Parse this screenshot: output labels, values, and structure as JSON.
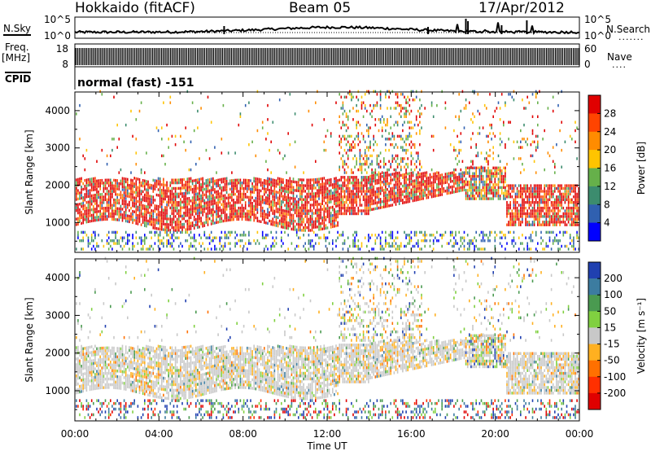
{
  "header": {
    "station": "Hokkaido (fitACF)",
    "beam": "Beam 05",
    "date": "17/Apr/2012"
  },
  "side_labels": {
    "nsky": "N.Sky",
    "freq_top": "Freq.",
    "freq_unit": "[MHz]",
    "cpid": "CPID",
    "nsearch": "N.Search",
    "nave": "Nave",
    "cpid_text": "normal (fast) -151"
  },
  "chart_data": [
    {
      "type": "line",
      "name": "noise-panel",
      "left_ticks": [
        "10^5",
        "10^0"
      ],
      "right_ticks": [
        "10^5",
        "10^0"
      ],
      "left_label": "N.Sky",
      "right_label": "N.Search",
      "x_range_hours": [
        0,
        24
      ]
    },
    {
      "type": "bar",
      "name": "frequency-panel",
      "left_ticks": [
        "18",
        "8"
      ],
      "right_ticks": [
        "60",
        "0"
      ],
      "left_label": "Freq. [MHz]",
      "right_label": "Nave"
    },
    {
      "type": "heatmap",
      "name": "power-panel",
      "ylabel": "Slant Range [km]",
      "yticks": [
        1000,
        2000,
        3000,
        4000
      ],
      "ylim": [
        200,
        4500
      ],
      "xlim_hours": [
        0,
        24
      ],
      "colorbar": {
        "label": "Power [dB]",
        "ticks": [
          "28",
          "24",
          "20",
          "16",
          "12",
          "8",
          "4"
        ],
        "colors": [
          "#e00000",
          "#ff4400",
          "#ff8c00",
          "#ffc400",
          "#66b04a",
          "#3c8c6e",
          "#3060b0",
          "#0000ff"
        ]
      },
      "features": [
        {
          "band_km": [
            1000,
            2200
          ],
          "hours": [
            0,
            12.5
          ],
          "level": "high"
        },
        {
          "band_km": [
            1400,
            2300
          ],
          "hours": [
            12.5,
            18.5
          ],
          "level": "high"
        },
        {
          "band_km": [
            1000,
            2000
          ],
          "hours": [
            20.5,
            24
          ],
          "level": "high"
        },
        {
          "band_km": [
            2800,
            4500
          ],
          "hours": [
            12.5,
            16.5
          ],
          "level": "mixed"
        }
      ]
    },
    {
      "type": "heatmap",
      "name": "velocity-panel",
      "ylabel": "Slant Range [km]",
      "yticks": [
        1000,
        2000,
        3000,
        4000
      ],
      "ylim": [
        200,
        4500
      ],
      "xlim_hours": [
        0,
        24
      ],
      "colorbar": {
        "label": "Velocity [m s⁻¹]",
        "ticks": [
          "200",
          "100",
          "50",
          "15",
          "-15",
          "-50",
          "-100",
          "-200"
        ],
        "colors": [
          "#2040b0",
          "#3c7ca0",
          "#4a9a50",
          "#80d040",
          "#c8c8c8",
          "#ffb020",
          "#ff7000",
          "#ff3000",
          "#e00000"
        ]
      },
      "xlabel": "Time UT",
      "xticks": [
        "00:00",
        "04:00",
        "08:00",
        "12:00",
        "16:00",
        "20:00",
        "00:00"
      ]
    }
  ]
}
